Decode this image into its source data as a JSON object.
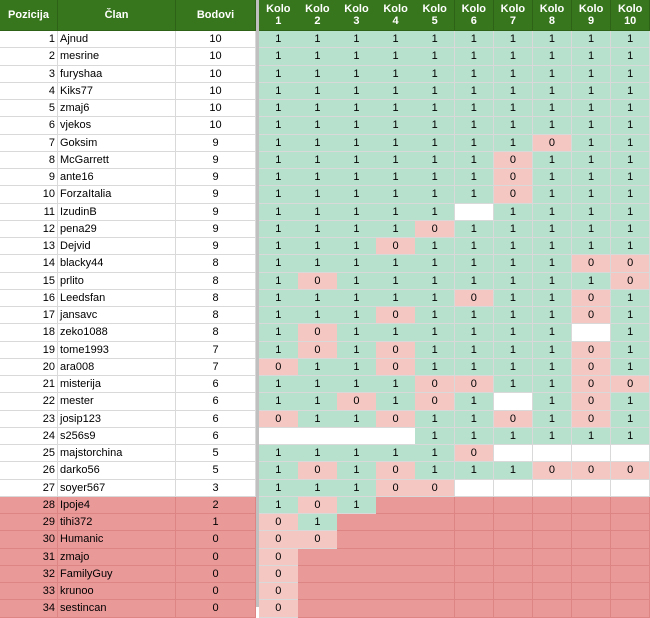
{
  "headers": {
    "pozicija": "Pozicija",
    "clan": "Član",
    "bodovi": "Bodovi",
    "kolo": [
      "Kolo 1",
      "Kolo 2",
      "Kolo 3",
      "Kolo 4",
      "Kolo 5",
      "Kolo 6",
      "Kolo 7",
      "Kolo 8",
      "Kolo 9",
      "Kolo 10"
    ]
  },
  "colors": {
    "header_bg": "#38761d",
    "correct_bg": "#b7e1cd",
    "wrong_bg": "#f4c7c3",
    "relegation_bg": "#ea9999"
  },
  "rows": [
    {
      "pos": "1",
      "name": "Ajnud",
      "pts": "10",
      "k": [
        "1",
        "1",
        "1",
        "1",
        "1",
        "1",
        "1",
        "1",
        "1",
        "1"
      ]
    },
    {
      "pos": "2",
      "name": "mesrine",
      "pts": "10",
      "k": [
        "1",
        "1",
        "1",
        "1",
        "1",
        "1",
        "1",
        "1",
        "1",
        "1"
      ]
    },
    {
      "pos": "3",
      "name": "furyshaa",
      "pts": "10",
      "k": [
        "1",
        "1",
        "1",
        "1",
        "1",
        "1",
        "1",
        "1",
        "1",
        "1"
      ]
    },
    {
      "pos": "4",
      "name": "Kiks77",
      "pts": "10",
      "k": [
        "1",
        "1",
        "1",
        "1",
        "1",
        "1",
        "1",
        "1",
        "1",
        "1"
      ]
    },
    {
      "pos": "5",
      "name": "zmaj6",
      "pts": "10",
      "k": [
        "1",
        "1",
        "1",
        "1",
        "1",
        "1",
        "1",
        "1",
        "1",
        "1"
      ]
    },
    {
      "pos": "6",
      "name": "vjekos",
      "pts": "10",
      "k": [
        "1",
        "1",
        "1",
        "1",
        "1",
        "1",
        "1",
        "1",
        "1",
        "1"
      ]
    },
    {
      "pos": "7",
      "name": "Goksim",
      "pts": "9",
      "k": [
        "1",
        "1",
        "1",
        "1",
        "1",
        "1",
        "1",
        "0",
        "1",
        "1"
      ]
    },
    {
      "pos": "8",
      "name": "McGarrett",
      "pts": "9",
      "k": [
        "1",
        "1",
        "1",
        "1",
        "1",
        "1",
        "0",
        "1",
        "1",
        "1"
      ]
    },
    {
      "pos": "9",
      "name": "ante16",
      "pts": "9",
      "k": [
        "1",
        "1",
        "1",
        "1",
        "1",
        "1",
        "0",
        "1",
        "1",
        "1"
      ]
    },
    {
      "pos": "10",
      "name": "ForzaItalia",
      "pts": "9",
      "k": [
        "1",
        "1",
        "1",
        "1",
        "1",
        "1",
        "0",
        "1",
        "1",
        "1"
      ]
    },
    {
      "pos": "11",
      "name": "IzudinB",
      "pts": "9",
      "k": [
        "1",
        "1",
        "1",
        "1",
        "1",
        "",
        "1",
        "1",
        "1",
        "1"
      ]
    },
    {
      "pos": "12",
      "name": "pena29",
      "pts": "9",
      "k": [
        "1",
        "1",
        "1",
        "1",
        "0",
        "1",
        "1",
        "1",
        "1",
        "1"
      ]
    },
    {
      "pos": "13",
      "name": "Dejvid",
      "pts": "9",
      "k": [
        "1",
        "1",
        "1",
        "0",
        "1",
        "1",
        "1",
        "1",
        "1",
        "1"
      ]
    },
    {
      "pos": "14",
      "name": "blacky44",
      "pts": "8",
      "k": [
        "1",
        "1",
        "1",
        "1",
        "1",
        "1",
        "1",
        "1",
        "0",
        "0"
      ]
    },
    {
      "pos": "15",
      "name": "prlito",
      "pts": "8",
      "k": [
        "1",
        "0",
        "1",
        "1",
        "1",
        "1",
        "1",
        "1",
        "1",
        "0"
      ]
    },
    {
      "pos": "16",
      "name": "Leedsfan",
      "pts": "8",
      "k": [
        "1",
        "1",
        "1",
        "1",
        "1",
        "0",
        "1",
        "1",
        "0",
        "1"
      ]
    },
    {
      "pos": "17",
      "name": "jansavc",
      "pts": "8",
      "k": [
        "1",
        "1",
        "1",
        "0",
        "1",
        "1",
        "1",
        "1",
        "0",
        "1"
      ]
    },
    {
      "pos": "18",
      "name": "zeko1088",
      "pts": "8",
      "k": [
        "1",
        "0",
        "1",
        "1",
        "1",
        "1",
        "1",
        "1",
        "",
        "1"
      ]
    },
    {
      "pos": "19",
      "name": "tome1993",
      "pts": "7",
      "k": [
        "1",
        "0",
        "1",
        "0",
        "1",
        "1",
        "1",
        "1",
        "0",
        "1"
      ]
    },
    {
      "pos": "20",
      "name": "ara008",
      "pts": "7",
      "k": [
        "0",
        "1",
        "1",
        "0",
        "1",
        "1",
        "1",
        "1",
        "0",
        "1"
      ]
    },
    {
      "pos": "21",
      "name": "misterija",
      "pts": "6",
      "k": [
        "1",
        "1",
        "1",
        "1",
        "0",
        "0",
        "1",
        "1",
        "0",
        "0"
      ]
    },
    {
      "pos": "22",
      "name": "mester",
      "pts": "6",
      "k": [
        "1",
        "1",
        "0",
        "1",
        "0",
        "1",
        "",
        "1",
        "0",
        "1"
      ]
    },
    {
      "pos": "23",
      "name": "josip123",
      "pts": "6",
      "k": [
        "0",
        "1",
        "1",
        "0",
        "1",
        "1",
        "0",
        "1",
        "0",
        "1"
      ]
    },
    {
      "pos": "24",
      "name": "s256s9",
      "pts": "6",
      "k": [
        "",
        "",
        "",
        "",
        "1",
        "1",
        "1",
        "1",
        "1",
        "1"
      ]
    },
    {
      "pos": "25",
      "name": "majstorchina",
      "pts": "5",
      "k": [
        "1",
        "1",
        "1",
        "1",
        "1",
        "0",
        "",
        "",
        "",
        ""
      ]
    },
    {
      "pos": "26",
      "name": "darko56",
      "pts": "5",
      "k": [
        "1",
        "0",
        "1",
        "0",
        "1",
        "1",
        "1",
        "0",
        "0",
        "0"
      ]
    },
    {
      "pos": "27",
      "name": "soyer567",
      "pts": "3",
      "k": [
        "1",
        "1",
        "1",
        "0",
        "0",
        "",
        "",
        "",
        "",
        ""
      ]
    },
    {
      "pos": "28",
      "name": "Ipoje4",
      "pts": "2",
      "k": [
        "1",
        "0",
        "1",
        "",
        "",
        "",
        "",
        "",
        "",
        ""
      ]
    },
    {
      "pos": "29",
      "name": "tihi372",
      "pts": "1",
      "k": [
        "0",
        "1",
        "",
        "",
        "",
        "",
        "",
        "",
        "",
        ""
      ]
    },
    {
      "pos": "30",
      "name": "Humanic",
      "pts": "0",
      "k": [
        "0",
        "0",
        "",
        "",
        "",
        "",
        "",
        "",
        "",
        ""
      ]
    },
    {
      "pos": "31",
      "name": "zmajo",
      "pts": "0",
      "k": [
        "0",
        "",
        "",
        "",
        "",
        "",
        "",
        "",
        "",
        ""
      ]
    },
    {
      "pos": "32",
      "name": "FamilyGuy",
      "pts": "0",
      "k": [
        "0",
        "",
        "",
        "",
        "",
        "",
        "",
        "",
        "",
        ""
      ]
    },
    {
      "pos": "33",
      "name": "krunoo",
      "pts": "0",
      "k": [
        "0",
        "",
        "",
        "",
        "",
        "",
        "",
        "",
        "",
        ""
      ]
    },
    {
      "pos": "34",
      "name": "sestincan",
      "pts": "0",
      "k": [
        "0",
        "",
        "",
        "",
        "",
        "",
        "",
        "",
        "",
        ""
      ]
    }
  ]
}
